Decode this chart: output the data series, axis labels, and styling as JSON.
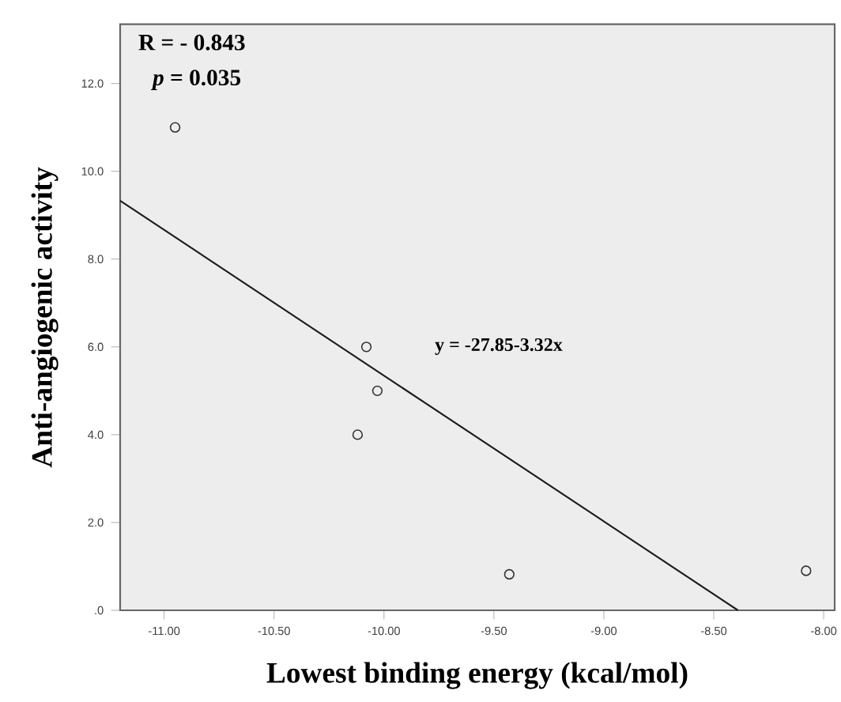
{
  "chart_data": {
    "type": "scatter",
    "xlabel": "Lowest binding energy (kcal/mol)",
    "ylabel": "Anti-angiogenic activity",
    "annotations": [
      "R = - 0.843",
      "*p* = 0.035",
      "y = -27.85-3.32x"
    ],
    "xlim": [
      -11.2,
      -7.95
    ],
    "ylim": [
      0,
      13.35
    ],
    "xticks": [
      {
        "value": -11,
        "label": "-11.00"
      },
      {
        "value": -10.5,
        "label": "-10.50"
      },
      {
        "value": -10,
        "label": "-10.00"
      },
      {
        "value": -9.5,
        "label": "-9.50"
      },
      {
        "value": -9,
        "label": "-9.00"
      },
      {
        "value": -8.5,
        "label": "-8.50"
      },
      {
        "value": -8,
        "label": "-8.00"
      }
    ],
    "yticks": [
      {
        "value": 0,
        "label": ".0"
      },
      {
        "value": 2,
        "label": "2.0"
      },
      {
        "value": 4,
        "label": "4.0"
      },
      {
        "value": 6,
        "label": "6.0"
      },
      {
        "value": 8,
        "label": "8.0"
      },
      {
        "value": 10,
        "label": "10.0"
      },
      {
        "value": 12,
        "label": "12.0"
      }
    ],
    "grid": false,
    "series": [
      {
        "marker": "circle",
        "color": "#333333",
        "x": [
          -10.95,
          -10.08,
          -10.03,
          -10.12,
          -9.43,
          -8.08
        ],
        "values": [
          11.0,
          6.0,
          5.0,
          4.0,
          0.82,
          0.9
        ]
      },
      {
        "type": "line",
        "marker": "none",
        "line_style": "solid",
        "color": "#1a1a1a",
        "x": [
          -11.2,
          -8.39
        ],
        "values": [
          9.33,
          0
        ]
      }
    ]
  }
}
